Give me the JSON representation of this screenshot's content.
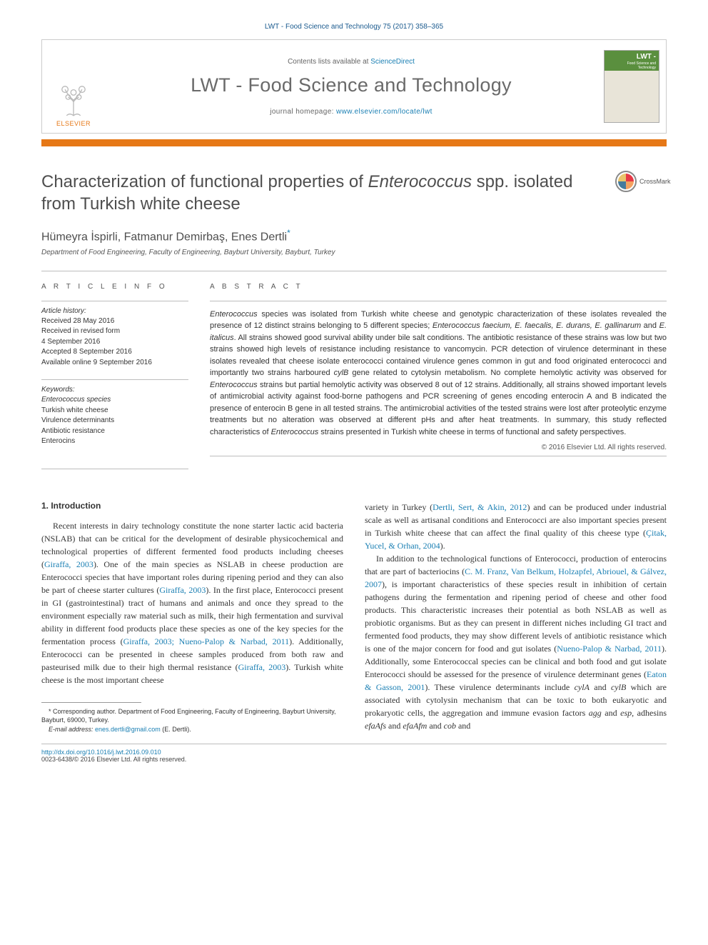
{
  "citation": "LWT - Food Science and Technology 75 (2017) 358–365",
  "masthead": {
    "contents_prefix": "Contents lists available at ",
    "contents_link": "ScienceDirect",
    "journal_name": "LWT - Food Science and Technology",
    "homepage_prefix": "journal homepage: ",
    "homepage_url": "www.elsevier.com/locate/lwt",
    "publisher": "ELSEVIER",
    "cover_label": "LWT -"
  },
  "colors": {
    "accent_orange": "#e67817",
    "link_blue": "#1a7fb3",
    "text_gray": "#4e4e4e",
    "rule_gray": "#bdbdbd",
    "cover_green": "#5a8f3e"
  },
  "crossmark_label": "CrossMark",
  "title_parts": {
    "pre": "Characterization of functional properties of ",
    "italic": "Enterococcus",
    "post": " spp. isolated from Turkish white cheese"
  },
  "authors_line": "Hümeyra İspirli, Fatmanur Demirbaş, Enes Dertli",
  "corr_marker": "*",
  "affiliation": "Department of Food Engineering, Faculty of Engineering, Bayburt University, Bayburt, Turkey",
  "article_info": {
    "label": "A R T I C L E   I N F O",
    "history_head": "Article history:",
    "history": [
      "Received 28 May 2016",
      "Received in revised form",
      "4 September 2016",
      "Accepted 8 September 2016",
      "Available online 9 September 2016"
    ],
    "keywords_head": "Keywords:",
    "keywords": [
      "Enterococcus species",
      "Turkish white cheese",
      "Virulence determinants",
      "Antibiotic resistance",
      "Enterocins"
    ]
  },
  "abstract": {
    "label": "A B S T R A C T",
    "text_parts": [
      {
        "i": true,
        "t": "Enterococcus"
      },
      {
        "i": false,
        "t": " species was isolated from Turkish white cheese and genotypic characterization of these isolates revealed the presence of 12 distinct strains belonging to 5 different species; "
      },
      {
        "i": true,
        "t": "Enterococcus faecium, E. faecalis, E. durans, E. gallinarum"
      },
      {
        "i": false,
        "t": " and "
      },
      {
        "i": true,
        "t": "E. italicus"
      },
      {
        "i": false,
        "t": ". All strains showed good survival ability under bile salt conditions. The antibiotic resistance of these strains was low but two strains showed high levels of resistance including resistance to vancomycin. PCR detection of virulence determinant in these isolates revealed that cheese isolate enterococci contained virulence genes common in gut and food originated enterococci and importantly two strains harboured "
      },
      {
        "i": true,
        "t": "cylB"
      },
      {
        "i": false,
        "t": " gene related to cytolysin metabolism. No complete hemolytic activity was observed for "
      },
      {
        "i": true,
        "t": "Enterococcus"
      },
      {
        "i": false,
        "t": " strains but partial hemolytic activity was observed 8 out of 12 strains. Additionally, all strains showed important levels of antimicrobial activity against food-borne pathogens and PCR screening of genes encoding enterocin A and B indicated the presence of enterocin B gene in all tested strains. The antimicrobial activities of the tested strains were lost after proteolytic enzyme treatments but no alteration was observed at different pHs and after heat treatments. In summary, this study reflected characteristics of "
      },
      {
        "i": true,
        "t": "Enterococcus"
      },
      {
        "i": false,
        "t": " strains presented in Turkish white cheese in terms of functional and safety perspectives."
      }
    ],
    "copyright": "© 2016 Elsevier Ltd. All rights reserved."
  },
  "intro": {
    "heading": "1. Introduction",
    "col1": [
      {
        "t": "Recent interests in dairy technology constitute the none starter lactic acid bacteria (NSLAB) that can be critical for the development of desirable physicochemical and technological properties of different fermented food products including cheeses ("
      },
      {
        "c": true,
        "t": "Giraffa, 2003"
      },
      {
        "t": "). One of the main species as NSLAB in cheese production are Enterococci species that have important roles during ripening period and they can also be part of cheese starter cultures ("
      },
      {
        "c": true,
        "t": "Giraffa, 2003"
      },
      {
        "t": "). In the first place, Enterococci present in GI (gastrointestinal) tract of humans and animals and once they spread to the environment especially raw material such as milk, their high fermentation and survival ability in different food products place these species as one of the key species for the fermentation process ("
      },
      {
        "c": true,
        "t": "Giraffa, 2003; Nueno-Palop & Narbad, 2011"
      },
      {
        "t": "). Additionally, Enterococci can be presented in cheese samples produced from both raw and pasteurised milk due to their high thermal resistance ("
      },
      {
        "c": true,
        "t": "Giraffa, 2003"
      },
      {
        "t": "). Turkish white cheese is the most important cheese"
      }
    ],
    "col2a": [
      {
        "t": "variety in Turkey ("
      },
      {
        "c": true,
        "t": "Dertli, Sert, & Akin, 2012"
      },
      {
        "t": ") and can be produced under industrial scale as well as artisanal conditions and Enterococci are also important species present in Turkish white cheese that can affect the final quality of this cheese type ("
      },
      {
        "c": true,
        "t": "Çitak, Yucel, & Orhan, 2004"
      },
      {
        "t": ")."
      }
    ],
    "col2b": [
      {
        "t": "In addition to the technological functions of Enterococci, production of enterocins that are part of bacteriocins ("
      },
      {
        "c": true,
        "t": "C. M. Franz, Van Belkum, Holzapfel, Abriouel, & Gálvez, 2007"
      },
      {
        "t": "), is important characteristics of these species result in inhibition of certain pathogens during the fermentation and ripening period of cheese and other food products. This characteristic increases their potential as both NSLAB as well as probiotic organisms. But as they can present in different niches including GI tract and fermented food products, they may show different levels of antibiotic resistance which is one of the major concern for food and gut isolates ("
      },
      {
        "c": true,
        "t": "Nueno-Palop & Narbad, 2011"
      },
      {
        "t": "). Additionally, some Enterococcal species can be clinical and both food and gut isolate Enterococci should be assessed for the presence of virulence determinant genes ("
      },
      {
        "c": true,
        "t": "Eaton & Gasson, 2001"
      },
      {
        "t": "). These virulence determinants include "
      },
      {
        "i": true,
        "t": "cylA"
      },
      {
        "t": " and "
      },
      {
        "i": true,
        "t": "cylB"
      },
      {
        "t": " which are associated with cytolysin mechanism that can be toxic to both eukaryotic and prokaryotic cells, the aggregation and immune evasion factors "
      },
      {
        "i": true,
        "t": "agg"
      },
      {
        "t": " and "
      },
      {
        "i": true,
        "t": "esp"
      },
      {
        "t": ", adhesins "
      },
      {
        "i": true,
        "t": "efaAfs"
      },
      {
        "t": " and "
      },
      {
        "i": true,
        "t": "efaAfm"
      },
      {
        "t": " and "
      },
      {
        "i": true,
        "t": "cob"
      },
      {
        "t": " and"
      }
    ]
  },
  "footnotes": {
    "corr": "* Corresponding author. Department of Food Engineering, Faculty of Engineering, Bayburt University, Bayburt, 69000, Turkey.",
    "email_label": "E-mail address: ",
    "email": "enes.dertli@gmail.com",
    "email_suffix": " (E. Dertli)."
  },
  "footer": {
    "doi": "http://dx.doi.org/10.1016/j.lwt.2016.09.010",
    "issn": "0023-6438/© 2016 Elsevier Ltd. All rights reserved."
  }
}
